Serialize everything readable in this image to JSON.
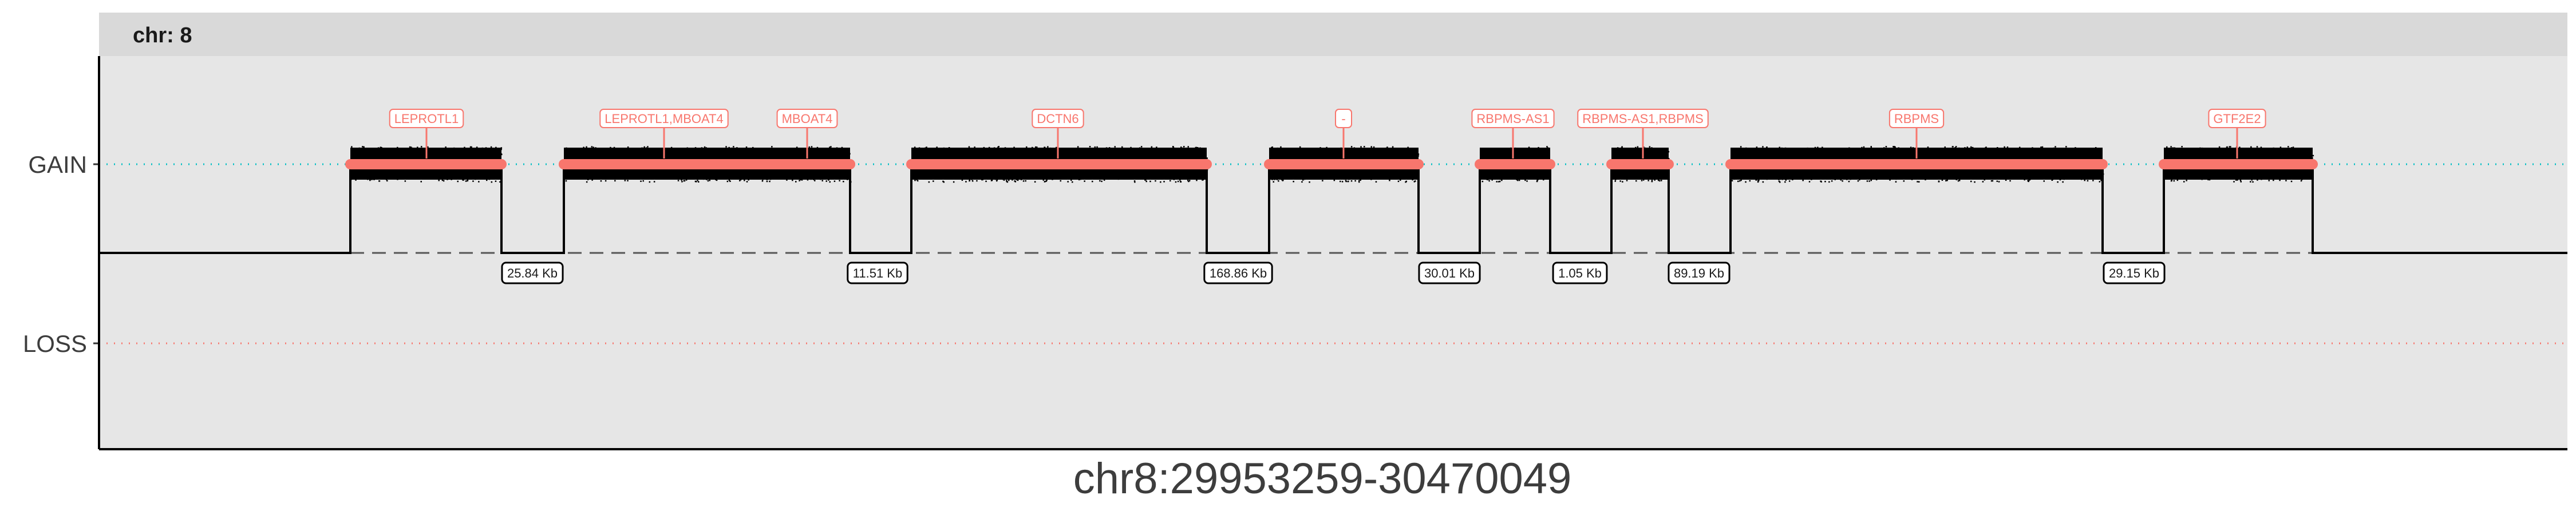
{
  "chart_data": {
    "type": "scatter",
    "facet_label": "chr: 8",
    "xlabel": "chr8:29953259-30470049",
    "y_categories": [
      "GAIN",
      "LOSS"
    ],
    "colors": {
      "panel_bg": "#e6e6e6",
      "strip_bg": "#d9d9d9",
      "gain_line": "#00BFC4",
      "loss_line": "#F8766D",
      "segment": "#F8766D",
      "points": "#000000",
      "gene_label": "#F8766D"
    },
    "segments": [
      {
        "gene": "LEPROTL1"
      },
      {
        "gene": "LEPROTL1,MBOAT4"
      },
      {
        "gene": "MBOAT4"
      },
      {
        "gene": "DCTN6"
      },
      {
        "gene": "-"
      },
      {
        "gene": "RBPMS-AS1"
      },
      {
        "gene": "RBPMS-AS1,RBPMS"
      },
      {
        "gene": "RBPMS"
      },
      {
        "gene": "GTF2E2"
      }
    ],
    "gaps": [
      "25.84 Kb",
      "11.51 Kb",
      "168.86 Kb",
      "30.01 Kb",
      "1.05 Kb",
      "89.19 Kb",
      "29.15 Kb"
    ]
  }
}
